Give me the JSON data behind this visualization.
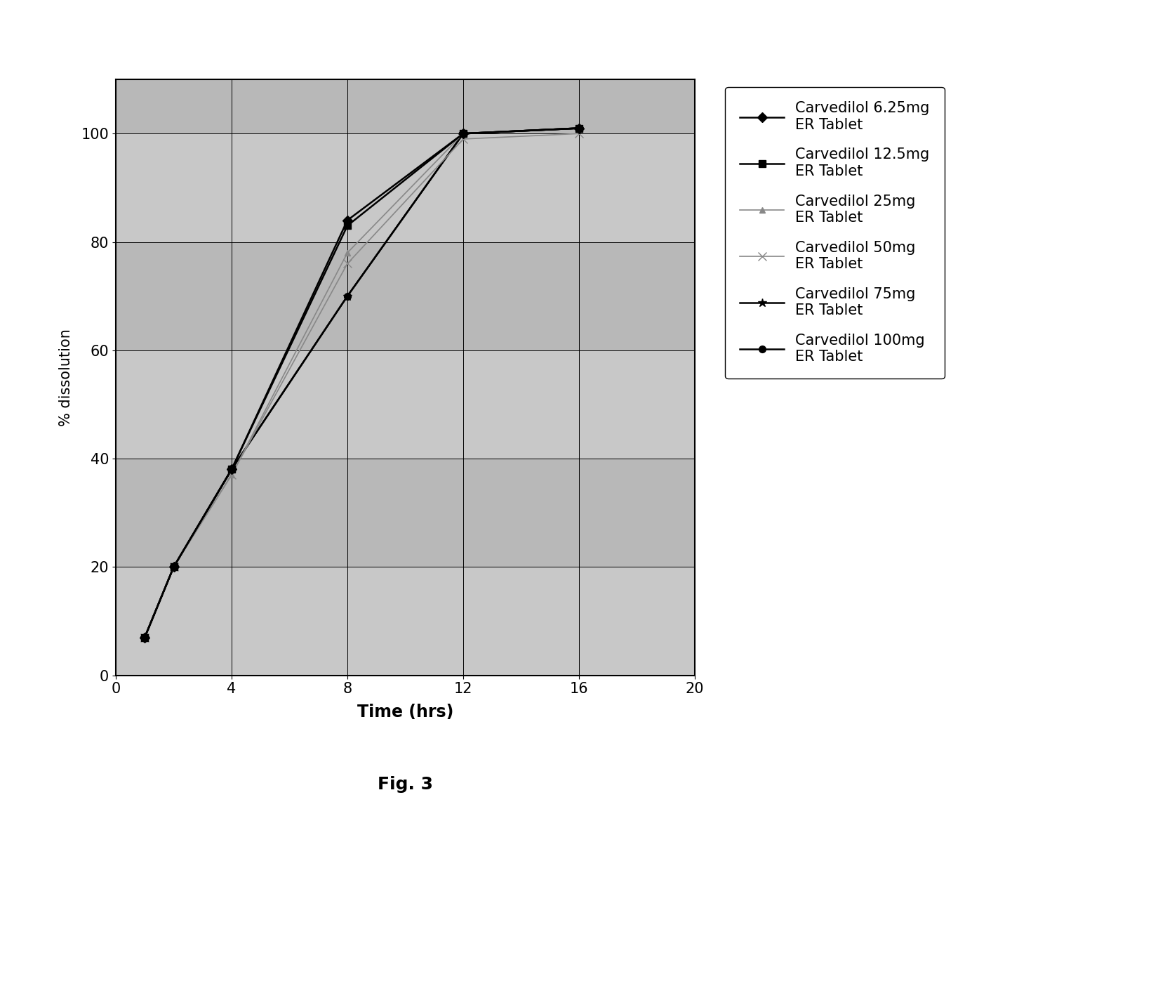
{
  "series": [
    {
      "label": "Carvedilol 6.25mg\nER Tablet",
      "x": [
        1,
        2,
        4,
        8,
        12,
        16
      ],
      "y": [
        7,
        20,
        38,
        84,
        100,
        101
      ],
      "color": "#000000",
      "linestyle": "-",
      "marker": "D",
      "markersize": 7,
      "linewidth": 1.8,
      "zorder": 6,
      "markerfill": "#000000"
    },
    {
      "label": "Carvedilol 12.5mg\nER Tablet",
      "x": [
        1,
        2,
        4,
        8,
        12,
        16
      ],
      "y": [
        7,
        20,
        38,
        83,
        100,
        101
      ],
      "color": "#000000",
      "linestyle": "-",
      "marker": "s",
      "markersize": 7,
      "linewidth": 1.8,
      "zorder": 5,
      "markerfill": "#000000"
    },
    {
      "label": "Carvedilol 25mg\nER Tablet",
      "x": [
        1,
        2,
        4,
        8,
        12,
        16
      ],
      "y": [
        7,
        20,
        37,
        78,
        100,
        101
      ],
      "color": "#888888",
      "linestyle": "-",
      "marker": "^",
      "markersize": 6,
      "linewidth": 1.2,
      "zorder": 4,
      "markerfill": "#888888"
    },
    {
      "label": "Carvedilol 50mg\nER Tablet",
      "x": [
        1,
        2,
        4,
        8,
        12,
        16
      ],
      "y": [
        7,
        20,
        37,
        76,
        99,
        100
      ],
      "color": "#888888",
      "linestyle": "-",
      "marker": "x",
      "markersize": 8,
      "linewidth": 1.2,
      "zorder": 3,
      "markerfill": "#888888"
    },
    {
      "label": "Carvedilol 75mg\nER Tablet",
      "x": [
        1,
        2,
        4,
        8,
        12,
        16
      ],
      "y": [
        7,
        20,
        38,
        70,
        100,
        101
      ],
      "color": "#000000",
      "linestyle": "-",
      "marker": "*",
      "markersize": 9,
      "linewidth": 1.8,
      "zorder": 2,
      "markerfill": "#000000"
    },
    {
      "label": "Carvedilol 100mg\nER Tablet",
      "x": [
        1,
        2,
        4,
        8,
        12,
        16
      ],
      "y": [
        7,
        20,
        38,
        70,
        100,
        101
      ],
      "color": "#000000",
      "linestyle": "-",
      "marker": "o",
      "markersize": 7,
      "linewidth": 1.8,
      "zorder": 1,
      "markerfill": "#000000"
    }
  ],
  "xlabel": "Time (hrs)",
  "ylabel": "% dissolution",
  "xlim": [
    0,
    20
  ],
  "ylim": [
    0,
    110
  ],
  "xticks": [
    0,
    4,
    8,
    12,
    16,
    20
  ],
  "yticks": [
    0,
    20,
    40,
    60,
    80,
    100
  ],
  "fig_caption": "Fig. 3",
  "xlabel_fontsize": 17,
  "ylabel_fontsize": 15,
  "tick_fontsize": 15,
  "legend_fontsize": 15,
  "caption_fontsize": 18,
  "band_colors": [
    "#c0c0c0",
    "#b0b0b0"
  ],
  "band_edges": [
    0,
    20,
    40,
    60,
    80,
    100,
    110
  ]
}
